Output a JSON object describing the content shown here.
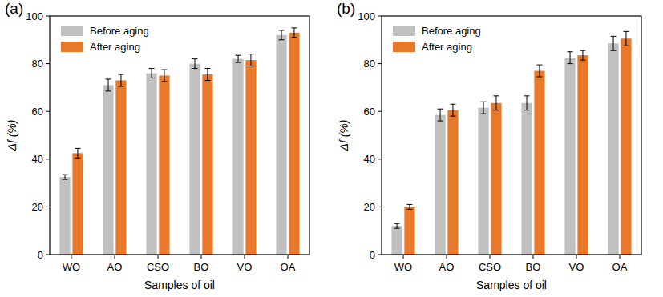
{
  "chart_data": [
    {
      "type": "bar",
      "title": "(a)",
      "x_label": "Samples of oil",
      "y_label": "Δf (%)",
      "categories": [
        "WO",
        "AO",
        "CSO",
        "BO",
        "VO",
        "OA"
      ],
      "series": [
        {
          "name": "Before aging",
          "color": "#c0c0c0",
          "values": [
            32.5,
            71,
            76,
            80,
            82,
            92
          ],
          "errors": [
            1,
            2.5,
            2,
            2,
            1.5,
            2
          ]
        },
        {
          "name": "After aging",
          "color": "#e8782a",
          "values": [
            42.5,
            73,
            75,
            75.5,
            81.5,
            93
          ],
          "errors": [
            2,
            2.5,
            2.5,
            2.5,
            2.5,
            2
          ]
        }
      ],
      "ylim": [
        0,
        100
      ],
      "yticks": [
        0,
        20,
        40,
        60,
        80,
        100
      ],
      "legend": "upper left"
    },
    {
      "type": "bar",
      "title": "(b)",
      "x_label": "Samples of oil",
      "y_label": "Δf (%)",
      "categories": [
        "WO",
        "AO",
        "CSO",
        "BO",
        "VO",
        "OA"
      ],
      "series": [
        {
          "name": "Before aging",
          "color": "#c0c0c0",
          "values": [
            12,
            58.5,
            61.5,
            63.5,
            82.5,
            88.5
          ],
          "errors": [
            1,
            2.5,
            2.5,
            3,
            2.5,
            3
          ]
        },
        {
          "name": "After aging",
          "color": "#e8782a",
          "values": [
            20,
            60.5,
            63.5,
            77,
            83.5,
            90.5
          ],
          "errors": [
            1,
            2.5,
            3,
            2.5,
            2,
            3
          ]
        }
      ],
      "ylim": [
        0,
        100
      ],
      "yticks": [
        0,
        20,
        40,
        60,
        80,
        100
      ],
      "legend": "upper left"
    }
  ]
}
